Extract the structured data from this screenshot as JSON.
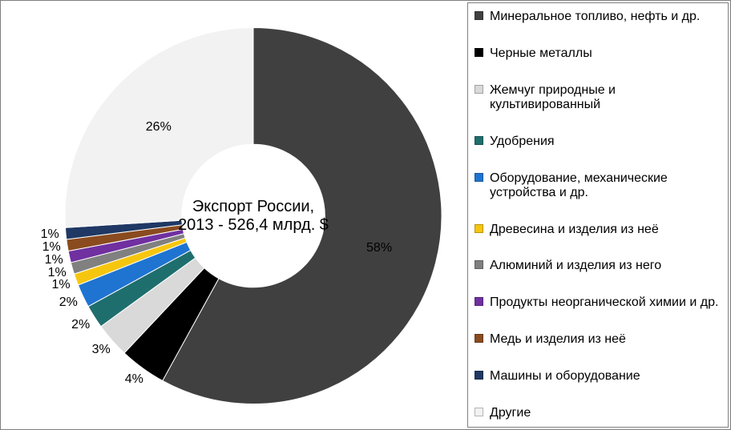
{
  "chart": {
    "type": "donut",
    "center_text_line1": "Экспорт России,",
    "center_text_line2": "2013 - 526,4 млрд. $",
    "inner_radius_ratio": 0.38,
    "outer_radius": 235,
    "start_angle_deg": -90,
    "direction": "cw",
    "background_color": "#ffffff",
    "border_color": "#7f7f7f",
    "title_fontsize": 20,
    "label_fontsize": 16,
    "legend_fontsize": 16,
    "slices": [
      {
        "label": "Минеральное топливо, нефть и др.",
        "value": 58,
        "display_pct": "58%",
        "color": "#404040"
      },
      {
        "label": "Черные металлы",
        "value": 4,
        "display_pct": "4%",
        "color": "#000000"
      },
      {
        "label": "Жемчуг природные и культивированный",
        "value": 3,
        "display_pct": "3%",
        "color": "#d9d9d9"
      },
      {
        "label": "Удобрения",
        "value": 2,
        "display_pct": "2%",
        "color": "#1f6e6e"
      },
      {
        "label": "Оборудование, механические устройства и др.",
        "value": 2,
        "display_pct": "2%",
        "color": "#1f74d1"
      },
      {
        "label": "Древесина и изделия из неё",
        "value": 1,
        "display_pct": "1%",
        "color": "#f6c60f"
      },
      {
        "label": "Алюминий и изделия из него",
        "value": 1,
        "display_pct": "1%",
        "color": "#808080"
      },
      {
        "label": "Продукты неорганической химии и др.",
        "value": 1,
        "display_pct": "1%",
        "color": "#7030a0"
      },
      {
        "label": "Медь и изделия из неё",
        "value": 1,
        "display_pct": "1%",
        "color": "#8a4b1f"
      },
      {
        "label": "Машины и оборудование",
        "value": 1,
        "display_pct": "1%",
        "color": "#1f3864"
      },
      {
        "label": "Другие",
        "value": 26,
        "display_pct": "26%",
        "color": "#f2f2f2"
      }
    ]
  }
}
